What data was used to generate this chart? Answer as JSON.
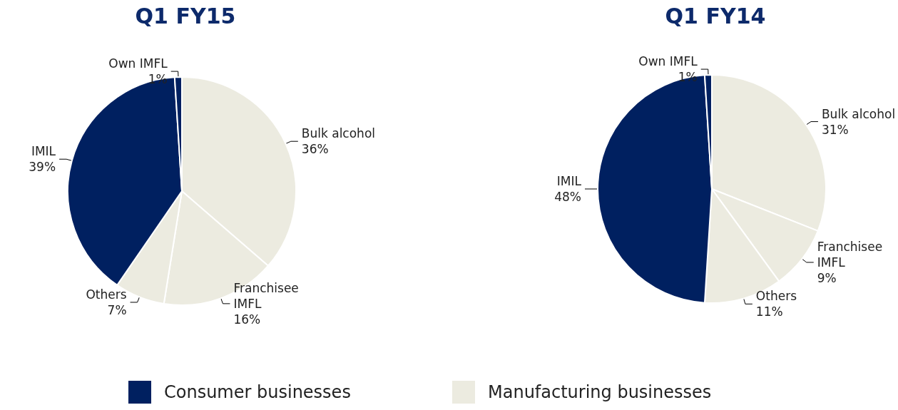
{
  "chart_data": [
    {
      "type": "pie",
      "title": "Q1 FY15",
      "categories": [
        "Bulk alcohol",
        "Franchisee IMFL",
        "Others",
        "IMIL",
        "Own IMFL"
      ],
      "values": [
        36,
        16,
        7,
        39,
        1
      ],
      "value_labels": [
        "36%",
        "16%",
        "7%",
        "39%",
        "1%"
      ],
      "colors": [
        "#ecebe0",
        "#ecebe0",
        "#ecebe0",
        "#002060",
        "#002060"
      ]
    },
    {
      "type": "pie",
      "title": "Q1 FY14",
      "categories": [
        "Bulk alcohol",
        "Franchisee IMFL",
        "Others",
        "IMIL",
        "Own IMFL"
      ],
      "values": [
        31,
        9,
        11,
        48,
        1
      ],
      "value_labels": [
        "31%",
        "9%",
        "11%",
        "48%",
        "1%"
      ],
      "colors": [
        "#ecebe0",
        "#ecebe0",
        "#ecebe0",
        "#002060",
        "#002060"
      ]
    },
    {
      "type": "other",
      "legend": "bottom",
      "series": [
        {
          "name": "Consumer businesses",
          "color": "#002060"
        },
        {
          "name": "Manufacturing businesses",
          "color": "#ecebe0"
        }
      ]
    }
  ]
}
